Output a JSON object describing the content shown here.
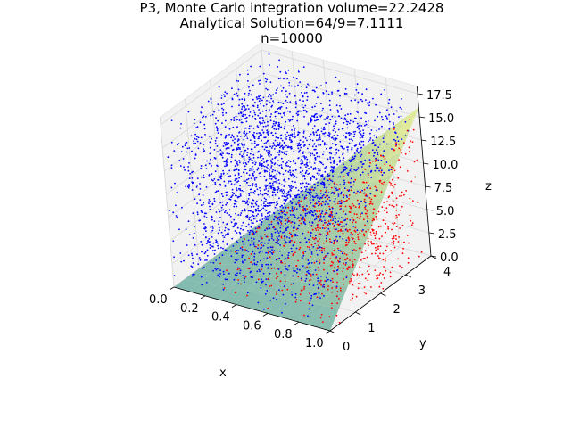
{
  "title": {
    "line1": "P3, Monte Carlo integration volume=22.2428",
    "line2": "Analytical Solution=64/9=7.1111",
    "line3": "n=10000"
  },
  "chart_data": {
    "type": "scatter",
    "projection": "3d",
    "xlabel": "x",
    "ylabel": "y",
    "zlabel": "z",
    "xlim": [
      0,
      1
    ],
    "ylim": [
      0,
      4
    ],
    "zlim": [
      0,
      17.5
    ],
    "xticks": [
      "0.0",
      "0.2",
      "0.4",
      "0.6",
      "0.8",
      "1.0"
    ],
    "yticks": [
      "0",
      "1",
      "2",
      "3",
      "4"
    ],
    "zticks": [
      "0.0",
      "2.5",
      "5.0",
      "7.5",
      "10.0",
      "12.5",
      "15.0",
      "17.5"
    ],
    "grid": true,
    "n_points": 10000,
    "surface": {
      "description": "z = f(x, y), semi-transparent, colormap viridis (teal at low z to yellow at high z)",
      "range_z": [
        0,
        17.5
      ],
      "colors": [
        "#5fa89a",
        "#f4f47a"
      ]
    },
    "series": [
      {
        "values_description": "points with z below surface",
        "color": "#ff0000"
      },
      {
        "values_description": "points with z above surface",
        "color": "#0000ff"
      }
    ],
    "colors": {
      "pane": "#f2f2f2",
      "grid": "#d9d9d9",
      "axis": "#000000"
    }
  }
}
